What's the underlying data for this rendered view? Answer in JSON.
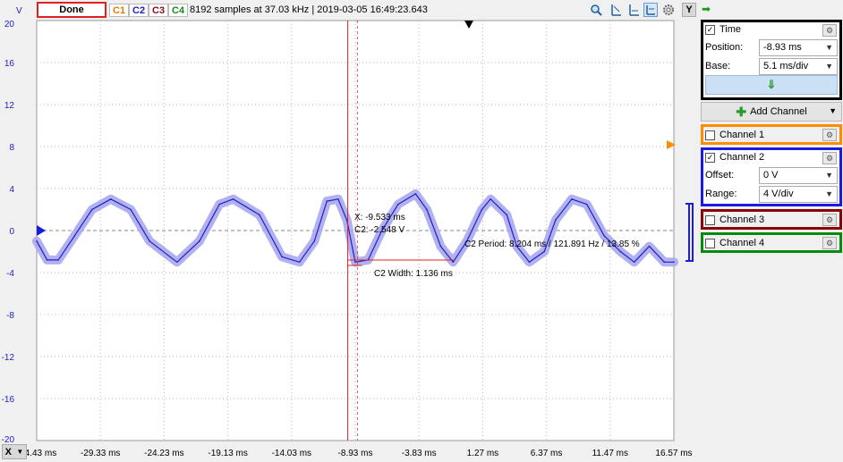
{
  "toolbar": {
    "run_state_label": "Done",
    "channel_tabs": [
      {
        "label": "C1",
        "color": "#e07a00"
      },
      {
        "label": "C2",
        "color": "#2020c0"
      },
      {
        "label": "C3",
        "color": "#8b1010"
      },
      {
        "label": "C4",
        "color": "#1a8a1a"
      }
    ],
    "status_text": "8192 samples at 37.03 kHz | 2019-03-05 16:49:23.643",
    "y_button_label": "Y",
    "icons": [
      "zoom-icon",
      "cursor-time-icon",
      "cursor-level-icon",
      "cursor-toggle-icon",
      "settings-gear-icon"
    ]
  },
  "y_axis": {
    "unit": "V",
    "ticks": [
      "20",
      "16",
      "12",
      "8",
      "4",
      "0",
      "-4",
      "-8",
      "-12",
      "-16",
      "-20"
    ]
  },
  "x_axis": {
    "button_label": "X",
    "ticks": [
      "-34.43 ms",
      "-29.33 ms",
      "-24.23 ms",
      "-19.13 ms",
      "-14.03 ms",
      "-8.93 ms",
      "-3.83 ms",
      "1.27 ms",
      "6.37 ms",
      "11.47 ms",
      "16.57 ms"
    ]
  },
  "measurements": {
    "cursor_x": "X: -9.533 ms",
    "cursor_c2": "C2: -2.548 V",
    "period": "C2 Period: 8.204 ms / 121.891 Hz / 13.85 %",
    "width": "C2 Width: 1.136 ms"
  },
  "time_panel": {
    "title": "Time",
    "checked": true,
    "position_label": "Position:",
    "position_value": "-8.93 ms",
    "base_label": "Base:",
    "base_value": "5.1 ms/div",
    "apply_icon": "down-arrow-icon"
  },
  "add_channel_label": "Add Channel",
  "channels": [
    {
      "name": "Channel 1",
      "checked": false,
      "color": "#ff8c00"
    },
    {
      "name": "Channel 2",
      "checked": true,
      "color": "#1a1ae0",
      "offset_label": "Offset:",
      "offset_value": "0 V",
      "range_label": "Range:",
      "range_value": "4 V/div"
    },
    {
      "name": "Channel 3",
      "checked": false,
      "color": "#8b0000"
    },
    {
      "name": "Channel 4",
      "checked": false,
      "color": "#0a8a0a"
    }
  ],
  "chart_data": {
    "type": "line",
    "title": "",
    "xlabel": "",
    "ylabel": "V",
    "xlim": [
      -34.43,
      16.57
    ],
    "ylim": [
      -20,
      20
    ],
    "grid": true,
    "series": [
      {
        "name": "C2",
        "color": "#2020c0",
        "x": [
          -34.43,
          -33.6,
          -32.7,
          -31.4,
          -30.0,
          -28.5,
          -26.9,
          -25.4,
          -23.2,
          -21.4,
          -19.8,
          -18.7,
          -16.6,
          -14.8,
          -13.4,
          -12.2,
          -11.2,
          -10.3,
          -9.6,
          -8.93,
          -7.9,
          -6.8,
          -5.5,
          -4.1,
          -3.2,
          -2.1,
          -1.1,
          0.0,
          1.2,
          1.9,
          3.2,
          4.0,
          5.0,
          6.2,
          7.1,
          8.4,
          9.6,
          11.0,
          12.3,
          13.4,
          14.6,
          15.8,
          16.57
        ],
        "values": [
          -1.0,
          -2.8,
          -2.8,
          -0.5,
          2.0,
          3.0,
          2.0,
          -1.0,
          -3.0,
          -1.0,
          2.5,
          3.0,
          1.5,
          -2.5,
          -3.0,
          -1.0,
          2.8,
          3.0,
          1.0,
          -3.0,
          -2.8,
          0.0,
          2.5,
          3.5,
          2.0,
          -1.5,
          -3.0,
          -1.0,
          2.0,
          3.0,
          1.5,
          -1.5,
          -3.0,
          -2.0,
          1.0,
          3.0,
          2.5,
          -0.5,
          -2.0,
          -3.0,
          -1.5,
          -3.0,
          -3.0
        ]
      }
    ],
    "cursor_time": -9.533,
    "cursor_value": -2.548
  }
}
